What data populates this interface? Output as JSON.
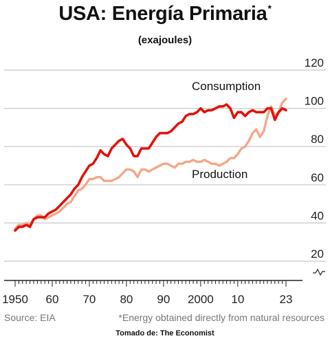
{
  "header": {
    "title": "USA: Energía Primaria",
    "title_mark": "*",
    "subtitle": "(exajoules)"
  },
  "footer": {
    "source": "Source: EIA",
    "note": "*Energy obtained directly from natural resources",
    "credit": "Tomado de: The Economist"
  },
  "chart_data": {
    "type": "line",
    "xlim": [
      1950,
      2023
    ],
    "ylim": [
      20,
      120
    ],
    "y_ticks": [
      20,
      40,
      60,
      80,
      100,
      120
    ],
    "x_ticks": [
      1950,
      1960,
      1970,
      1980,
      1990,
      2000,
      2010,
      2023
    ],
    "x_tick_labels": [
      "1950",
      "60",
      "70",
      "80",
      "90",
      "2000",
      "10",
      "23"
    ],
    "y_axis_position": "right",
    "grid": "horizontal",
    "axis_break": true,
    "series": [
      {
        "name": "Consumption",
        "color": "#e3120b",
        "x": [
          1950,
          1951,
          1952,
          1953,
          1954,
          1955,
          1956,
          1957,
          1958,
          1959,
          1960,
          1961,
          1962,
          1963,
          1964,
          1965,
          1966,
          1967,
          1968,
          1969,
          1970,
          1971,
          1972,
          1973,
          1974,
          1975,
          1976,
          1977,
          1978,
          1979,
          1980,
          1981,
          1982,
          1983,
          1984,
          1985,
          1986,
          1987,
          1988,
          1989,
          1990,
          1991,
          1992,
          1993,
          1994,
          1995,
          1996,
          1997,
          1998,
          1999,
          2000,
          2001,
          2002,
          2003,
          2004,
          2005,
          2006,
          2007,
          2008,
          2009,
          2010,
          2011,
          2012,
          2013,
          2014,
          2015,
          2016,
          2017,
          2018,
          2019,
          2020,
          2021,
          2022,
          2023
        ],
        "values": [
          36,
          38,
          38,
          39,
          38,
          42,
          43,
          43,
          43,
          45,
          46,
          47,
          49,
          51,
          53,
          55,
          58,
          60,
          64,
          67,
          70,
          71,
          74,
          78,
          76,
          75,
          79,
          81,
          83,
          84,
          81,
          79,
          75,
          75,
          79,
          79,
          79,
          82,
          85,
          87,
          87,
          87,
          88,
          90,
          92,
          93,
          96,
          97,
          97,
          98,
          100,
          98,
          99,
          99,
          100,
          101,
          101,
          102,
          100,
          95,
          98,
          98,
          96,
          98,
          99,
          98,
          98,
          98,
          100,
          100,
          94,
          98,
          100,
          99
        ]
      },
      {
        "name": "Production",
        "color": "#f4a788",
        "x": [
          1950,
          1951,
          1952,
          1953,
          1954,
          1955,
          1956,
          1957,
          1958,
          1959,
          1960,
          1961,
          1962,
          1963,
          1964,
          1965,
          1966,
          1967,
          1968,
          1969,
          1970,
          1971,
          1972,
          1973,
          1974,
          1975,
          1976,
          1977,
          1978,
          1979,
          1980,
          1981,
          1982,
          1983,
          1984,
          1985,
          1986,
          1987,
          1988,
          1989,
          1990,
          1991,
          1992,
          1993,
          1994,
          1995,
          1996,
          1997,
          1998,
          1999,
          2000,
          2001,
          2002,
          2003,
          2004,
          2005,
          2006,
          2007,
          2008,
          2009,
          2010,
          2011,
          2012,
          2013,
          2014,
          2015,
          2016,
          2017,
          2018,
          2019,
          2020,
          2021,
          2022,
          2023
        ],
        "values": [
          37,
          39,
          39,
          40,
          39,
          42,
          44,
          44,
          42,
          43,
          44,
          45,
          46,
          48,
          50,
          51,
          54,
          57,
          58,
          60,
          63,
          63,
          64,
          64,
          62,
          62,
          62,
          63,
          64,
          66,
          68,
          68,
          67,
          64,
          68,
          68,
          67,
          68,
          69,
          70,
          71,
          71,
          70,
          69,
          71,
          71,
          72,
          72,
          73,
          72,
          72,
          73,
          72,
          71,
          71,
          70,
          71,
          72,
          74,
          74,
          76,
          79,
          80,
          83,
          87,
          89,
          85,
          88,
          96,
          101,
          96,
          98,
          103,
          105
        ]
      }
    ]
  }
}
